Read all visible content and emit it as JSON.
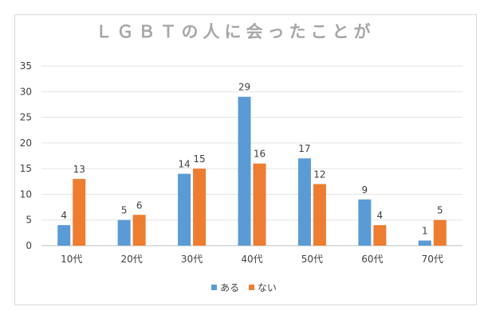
{
  "chart_data": {
    "type": "bar",
    "title": "ＬＧＢＴの人に会ったことが",
    "categories": [
      "10代",
      "20代",
      "30代",
      "40代",
      "50代",
      "60代",
      "70代"
    ],
    "series": [
      {
        "name": "ある",
        "color": "#5b9bd5",
        "values": [
          4,
          5,
          14,
          29,
          17,
          9,
          1
        ]
      },
      {
        "name": "ない",
        "color": "#ed7d31",
        "values": [
          13,
          6,
          15,
          16,
          12,
          4,
          5
        ]
      }
    ],
    "yticks": [
      "0",
      "5",
      "10",
      "15",
      "20",
      "25",
      "30",
      "35"
    ],
    "ylim": [
      0,
      35
    ],
    "grid": true,
    "legend": "bottom"
  }
}
